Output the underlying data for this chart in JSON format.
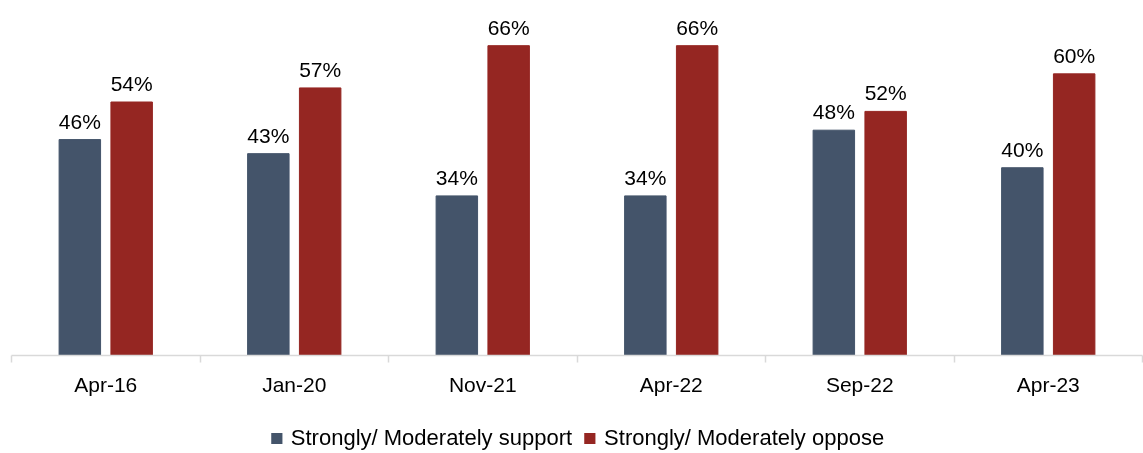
{
  "chart_data": {
    "type": "bar",
    "categories": [
      "Apr-16",
      "Jan-20",
      "Nov-21",
      "Apr-22",
      "Sep-22",
      "Apr-23"
    ],
    "series": [
      {
        "name": "Strongly/ Moderately support",
        "color": "#44546a",
        "values": [
          46,
          43,
          34,
          34,
          48,
          40
        ],
        "value_labels": [
          "46%",
          "43%",
          "34%",
          "34%",
          "48%",
          "40%"
        ]
      },
      {
        "name": "Strongly/ Moderately oppose",
        "color": "#952622",
        "values": [
          54,
          57,
          66,
          66,
          52,
          60
        ],
        "value_labels": [
          "54%",
          "57%",
          "66%",
          "66%",
          "52%",
          "60%"
        ]
      }
    ],
    "tick_labels": "x",
    "legend": "bottom"
  }
}
